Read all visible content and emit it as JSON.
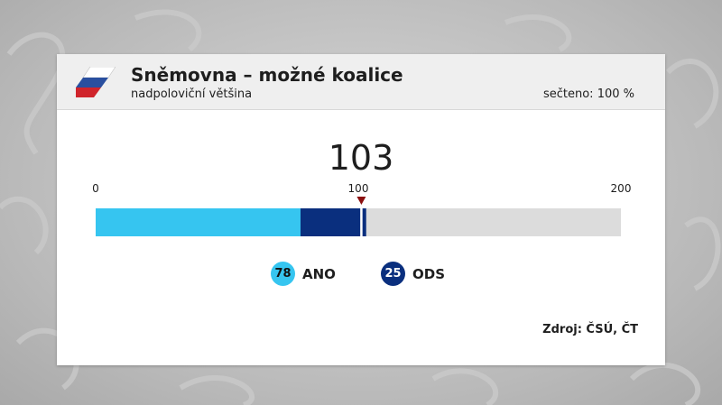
{
  "header": {
    "title": "Sněmovna – možné koalice",
    "subtitle": "nadpoloviční většina",
    "counted": "sečteno: 100 %"
  },
  "total_label": "103",
  "source": "Zdroj: ČSÚ, ČT",
  "colors": {
    "ano": "#36c5f0",
    "ods": "#0a2f7e",
    "remaining": "#dcdcdc",
    "majority_marker": "#8b0f0f"
  },
  "chart_data": {
    "type": "bar",
    "orientation": "horizontal-stacked",
    "xlim": [
      0,
      200
    ],
    "ticks": [
      0,
      100,
      200
    ],
    "tick_labels": [
      "0",
      "100",
      "200"
    ],
    "majority_threshold": 101,
    "total": 103,
    "series": [
      {
        "name": "ANO",
        "value": 78,
        "color": "#36c5f0"
      },
      {
        "name": "ODS",
        "value": 25,
        "color": "#0a2f7e"
      }
    ]
  },
  "legend": [
    {
      "value": "78",
      "label": "ANO"
    },
    {
      "value": "25",
      "label": "ODS"
    }
  ]
}
